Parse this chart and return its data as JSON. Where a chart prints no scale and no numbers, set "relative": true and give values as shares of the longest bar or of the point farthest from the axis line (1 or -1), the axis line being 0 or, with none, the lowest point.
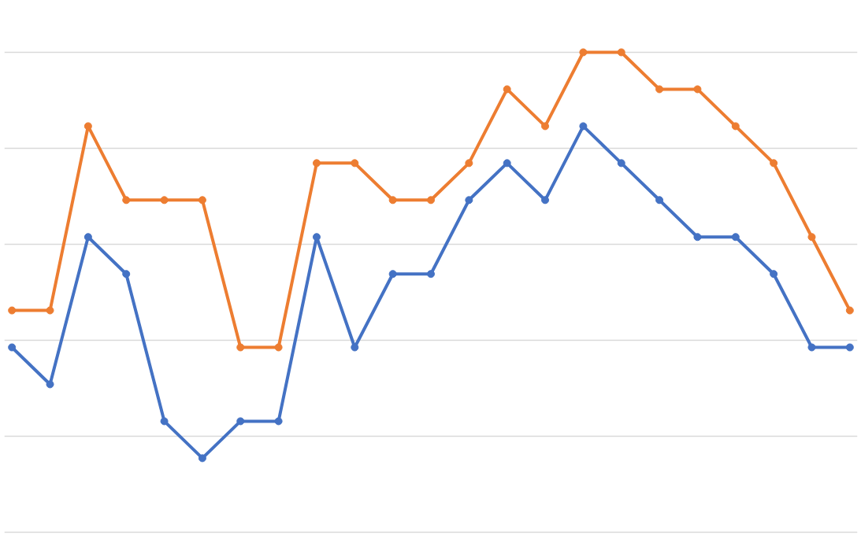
{
  "chart_data": {
    "type": "line",
    "relative": true,
    "categories": [
      null,
      null,
      null,
      null,
      null,
      null,
      null,
      null,
      null,
      null,
      null,
      null,
      null,
      null,
      null,
      null,
      null,
      null,
      null,
      null,
      null,
      null,
      null
    ],
    "series": [
      {
        "color": "#4472c4",
        "values": [
          0.385,
          0.308,
          0.615,
          0.538,
          0.231,
          0.154,
          0.231,
          0.231,
          0.615,
          0.385,
          0.538,
          0.538,
          0.692,
          0.769,
          0.692,
          0.846,
          0.769,
          0.692,
          0.615,
          0.615,
          0.538,
          0.385,
          0.385
        ]
      },
      {
        "color": "#ed7d31",
        "values": [
          0.462,
          0.462,
          0.846,
          0.692,
          0.692,
          0.692,
          0.385,
          0.385,
          0.769,
          0.769,
          0.692,
          0.692,
          0.769,
          0.923,
          0.846,
          1,
          1,
          0.923,
          0.923,
          0.846,
          0.769,
          0.615,
          0.462
        ]
      }
    ],
    "grid": "y",
    "marker": "circle",
    "line_style": "solid"
  }
}
